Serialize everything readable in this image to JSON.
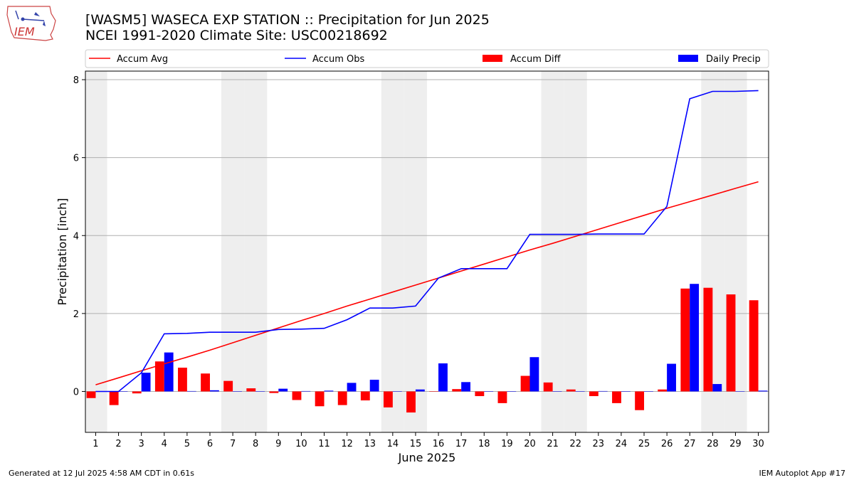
{
  "title_line1": "[WASM5] WASECA EXP STATION :: Precipitation for Jun 2025",
  "title_line2": "NCEI 1991-2020 Climate Site: USC00218692",
  "logo_text": "IEM",
  "footer_left": "Generated at 12 Jul 2025 4:58 AM CDT in 0.61s",
  "footer_right": "IEM Autoplot App #17",
  "colors": {
    "accum_avg": "#ff0000",
    "accum_obs": "#0000ff",
    "accum_diff": "#ff0000",
    "daily_precip": "#0000ff",
    "weekend_shade": "#eeeeee"
  },
  "chart_data": {
    "type": "bar",
    "xlabel": "June 2025",
    "ylabel": "Precipitation [inch]",
    "ylim": [
      -1.05,
      8.22
    ],
    "yticks": [
      0,
      2,
      4,
      6,
      8
    ],
    "grid": "horizontal",
    "legend_placement": "top",
    "categories": [
      "1",
      "2",
      "3",
      "4",
      "5",
      "6",
      "7",
      "8",
      "9",
      "10",
      "11",
      "12",
      "13",
      "14",
      "15",
      "16",
      "17",
      "18",
      "19",
      "20",
      "21",
      "22",
      "23",
      "24",
      "25",
      "26",
      "27",
      "28",
      "29",
      "30"
    ],
    "weekend_days": [
      1,
      7,
      8,
      14,
      15,
      21,
      22,
      28,
      29
    ],
    "series": [
      {
        "name": "Accum Avg",
        "kind": "line",
        "values": [
          0.17,
          0.35,
          0.53,
          0.71,
          0.88,
          1.06,
          1.25,
          1.44,
          1.63,
          1.82,
          2.0,
          2.19,
          2.37,
          2.55,
          2.73,
          2.91,
          3.09,
          3.27,
          3.45,
          3.63,
          3.8,
          3.98,
          4.16,
          4.34,
          4.52,
          4.7,
          4.87,
          5.04,
          5.21,
          5.38
        ]
      },
      {
        "name": "Accum Obs",
        "kind": "line",
        "values": [
          0.0,
          0.0,
          0.48,
          1.48,
          1.49,
          1.52,
          1.52,
          1.52,
          1.59,
          1.6,
          1.62,
          1.84,
          2.14,
          2.14,
          2.19,
          2.91,
          3.15,
          3.15,
          3.15,
          4.03,
          4.03,
          4.03,
          4.04,
          4.04,
          4.04,
          4.75,
          7.51,
          7.7,
          7.7,
          7.72
        ]
      },
      {
        "name": "Accum Diff",
        "kind": "bar",
        "values": [
          -0.17,
          -0.35,
          -0.05,
          0.77,
          0.61,
          0.46,
          0.27,
          0.08,
          -0.04,
          -0.22,
          -0.38,
          -0.35,
          -0.23,
          -0.41,
          -0.54,
          0.0,
          0.06,
          -0.12,
          -0.3,
          0.4,
          0.23,
          0.05,
          -0.12,
          -0.3,
          -0.48,
          0.05,
          2.64,
          2.66,
          2.49,
          2.34
        ]
      },
      {
        "name": "Daily Precip",
        "kind": "bar",
        "values": [
          0.0,
          0.0,
          0.48,
          1.0,
          0.01,
          0.03,
          0.0,
          0.0,
          0.07,
          0.01,
          0.02,
          0.22,
          0.3,
          0.0,
          0.05,
          0.72,
          0.24,
          0.0,
          0.0,
          0.88,
          0.0,
          0.0,
          0.01,
          0.0,
          0.0,
          0.71,
          2.76,
          0.19,
          0.0,
          0.02
        ]
      }
    ]
  }
}
